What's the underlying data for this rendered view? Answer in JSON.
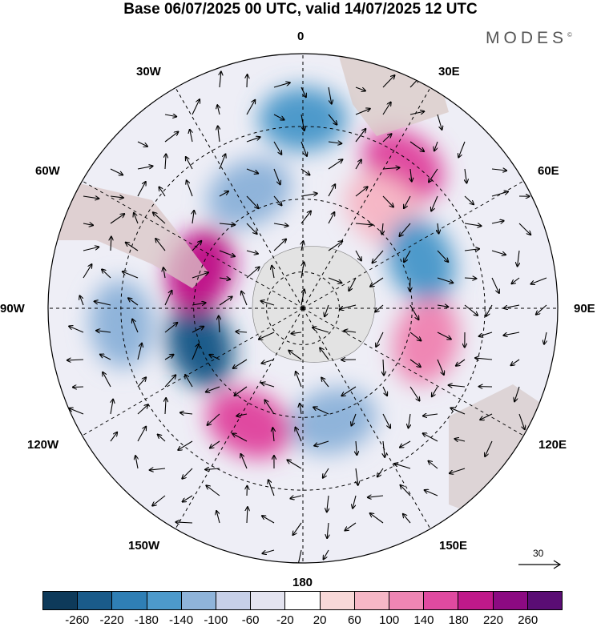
{
  "title": "Base 06/07/2025 00 UTC, valid 14/07/2025 12 UTC",
  "brand": "MODES",
  "brand_mark": "©",
  "lon_labels": {
    "l0": "0",
    "l30e": "30E",
    "l60e": "60E",
    "l90e": "90E",
    "l120e": "120E",
    "l150e": "150E",
    "l180": "180",
    "l150w": "150W",
    "l120w": "120W",
    "l90w": "90W",
    "l60w": "60W",
    "l30w": "30W"
  },
  "reference_vector": "30",
  "colorbar": {
    "ticks": [
      "-260",
      "-220",
      "-180",
      "-140",
      "-100",
      "-60",
      "-20",
      "20",
      "60",
      "100",
      "140",
      "180",
      "220",
      "260"
    ],
    "colors": [
      "#0e3a5a",
      "#1a5b8a",
      "#2f7fb5",
      "#4d9acb",
      "#8fb4da",
      "#c7d0e8",
      "#e4e4f0",
      "#ffffff",
      "#f8d8d8",
      "#f6b7c6",
      "#ef86b4",
      "#e04aa0",
      "#c0198a",
      "#8c0a82",
      "#5a0d74"
    ]
  },
  "anomalies": [
    {
      "lon": 0,
      "lat": -38,
      "value": -150
    },
    {
      "lon": 35,
      "lat": -42,
      "value": 140
    },
    {
      "lon": 40,
      "lat": -55,
      "value": 80
    },
    {
      "lon": 68,
      "lat": -55,
      "value": -150
    },
    {
      "lon": 105,
      "lat": -55,
      "value": 110
    },
    {
      "lon": 165,
      "lat": -58,
      "value": -130
    },
    {
      "lon": -155,
      "lat": -55,
      "value": 170
    },
    {
      "lon": -110,
      "lat": -60,
      "value": -230
    },
    {
      "lon": -70,
      "lat": -60,
      "value": 200
    },
    {
      "lon": -95,
      "lat": -40,
      "value": -120
    },
    {
      "lon": -25,
      "lat": -55,
      "value": -110
    }
  ]
}
